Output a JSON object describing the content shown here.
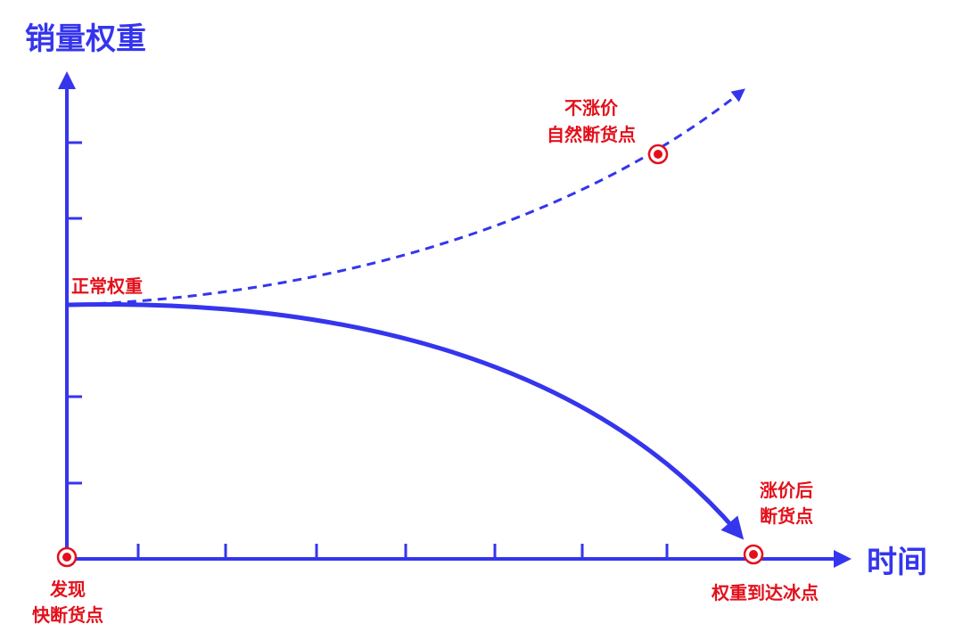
{
  "y_axis_label": "销量权重",
  "x_axis_label": "时间",
  "annotations": {
    "normal_weight": "正常权重",
    "natural_stockout": [
      "不涨价",
      "自然断货点"
    ],
    "after_raise_stockout": [
      "涨价后",
      "断货点"
    ],
    "freezing_point": "权重到达冰点",
    "found_near_stockout": [
      "发现",
      "快断货点"
    ]
  }
}
